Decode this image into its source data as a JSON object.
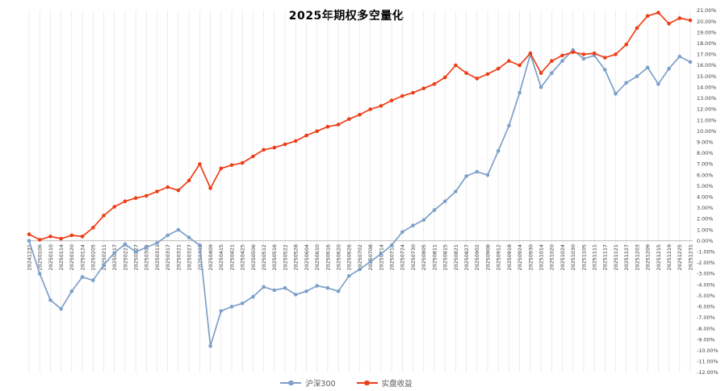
{
  "chart_data": {
    "type": "line",
    "title": "2025年期权多空量化",
    "x": [
      "20241231",
      "20250106",
      "20250110",
      "20250114",
      "20250120",
      "20250124",
      "20250205",
      "20250211",
      "20250217",
      "20250221",
      "20250227",
      "20250305",
      "20250311",
      "20250317",
      "20250321",
      "20250327",
      "20250402",
      "20250409",
      "20250415",
      "20250421",
      "20250425",
      "20250506",
      "20250512",
      "20250516",
      "20250522",
      "20250528",
      "20250604",
      "20250610",
      "20250616",
      "20250620",
      "20250626",
      "20250702",
      "20250708",
      "20250714",
      "20250718",
      "20250724",
      "20250730",
      "20250805",
      "20250811",
      "20250815",
      "20250821",
      "20250827",
      "20250902",
      "20250908",
      "20250912",
      "20250918",
      "20250924",
      "20250930",
      "20251014",
      "20251020",
      "20251024",
      "20251030",
      "20251105",
      "20251111",
      "20251117",
      "20251121",
      "20251127",
      "20251203",
      "20251209",
      "20251215",
      "20251219",
      "20251225",
      "20251231"
    ],
    "series": [
      {
        "name": "沪深300",
        "color": "#7da0c9",
        "values": [
          0.0,
          -3.0,
          -5.4,
          -6.2,
          -4.6,
          -3.3,
          -3.6,
          -2.2,
          -1.1,
          -0.3,
          -1.0,
          -0.6,
          -0.2,
          0.5,
          1.0,
          0.3,
          -0.4,
          -9.6,
          -6.4,
          -6.0,
          -5.7,
          -5.1,
          -4.2,
          -4.5,
          -4.3,
          -4.9,
          -4.6,
          -4.1,
          -4.3,
          -4.6,
          -3.2,
          -2.6,
          -1.9,
          -1.2,
          -0.4,
          0.8,
          1.4,
          1.9,
          2.8,
          3.6,
          4.5,
          5.9,
          6.3,
          6.0,
          8.2,
          10.5,
          13.5,
          17.0,
          14.0,
          15.3,
          16.4,
          17.4,
          16.6,
          16.9,
          15.6,
          13.4,
          14.4,
          15.0,
          15.8,
          14.3,
          15.7,
          16.8,
          16.3
        ]
      },
      {
        "name": "实盘收益",
        "color": "#ee3d16",
        "values": [
          0.6,
          0.1,
          0.4,
          0.2,
          0.5,
          0.4,
          1.2,
          2.3,
          3.1,
          3.6,
          3.9,
          4.1,
          4.5,
          4.9,
          4.6,
          5.5,
          7.0,
          4.8,
          6.6,
          6.9,
          7.1,
          7.7,
          8.3,
          8.5,
          8.8,
          9.1,
          9.6,
          10.0,
          10.4,
          10.6,
          11.1,
          11.5,
          12.0,
          12.3,
          12.8,
          13.2,
          13.5,
          13.9,
          14.3,
          14.9,
          16.0,
          15.3,
          14.8,
          15.2,
          15.7,
          16.4,
          16.0,
          17.1,
          15.3,
          16.4,
          16.9,
          17.2,
          17.0,
          17.1,
          16.7,
          17.0,
          17.9,
          19.4,
          20.5,
          20.8,
          19.8,
          20.3,
          20.1
        ]
      }
    ],
    "ylim": [
      -12,
      21
    ],
    "y_tick_step": 1,
    "y_tick_decimals": 2,
    "y_tick_suffix": "%",
    "y_axis_side": "right",
    "x_label_rotation": -90,
    "legend_position": "bottom",
    "grid": "vertical",
    "colors": {
      "background": "#ffffff",
      "grid": "#dedede",
      "axis_line": "#b3b3b3",
      "tick_labels": "#3f3f3f",
      "title": "#000000",
      "legend_text": "#595959"
    }
  }
}
